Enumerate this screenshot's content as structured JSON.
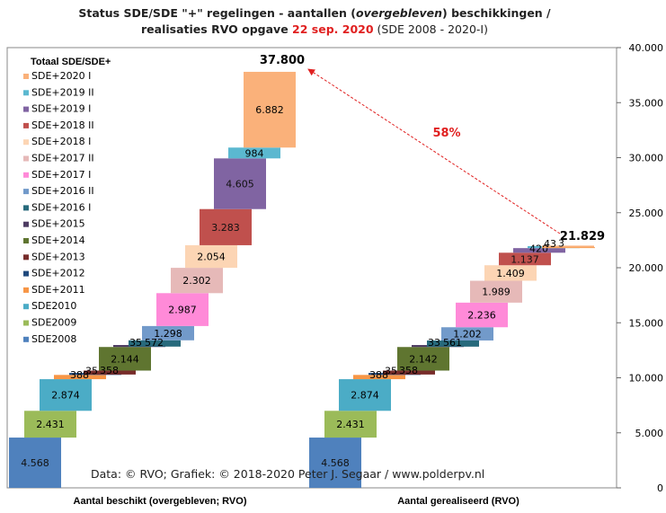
{
  "title": {
    "line1_a": "Status SDE/SDE  \"+\" regelingen  - aantallen (",
    "line1_em": "overgebleven",
    "line1_b": ") beschikkingen  /",
    "line2_a": "realisaties RVO opgave ",
    "line2_date": "22 sep. 2020",
    "line2_b": " (SDE 2008 - 2020-I)"
  },
  "chart_data": {
    "type": "bar",
    "subtype": "stacked-waterfall",
    "legend_title": "Totaal SDE/SDE+",
    "legend_position": "left",
    "categories": [
      "Aantal beschikt (overgebleven; RVO)",
      "Aantal gerealiseerd (RVO)"
    ],
    "ylim": [
      0,
      40000
    ],
    "yticks": [
      "0",
      "5.000",
      "10.000",
      "15.000",
      "20.000",
      "25.000",
      "30.000",
      "35.000",
      "40.000"
    ],
    "ytick_values": [
      0,
      5000,
      10000,
      15000,
      20000,
      25000,
      30000,
      35000,
      40000
    ],
    "y_axis_side": "right",
    "grid": false,
    "series": [
      {
        "name": "SDE2008",
        "color": "#4f81bd",
        "values": [
          4568,
          4568
        ],
        "labels": [
          "4.568",
          "4.568"
        ]
      },
      {
        "name": "SDE2009",
        "color": "#9bbb59",
        "values": [
          2431,
          2431
        ],
        "labels": [
          "2.431",
          "2.431"
        ]
      },
      {
        "name": "SDE2010",
        "color": "#4bacc6",
        "values": [
          2874,
          2874
        ],
        "labels": [
          "2.874",
          "2.874"
        ]
      },
      {
        "name": "SDE+2011",
        "color": "#f79646",
        "values": [
          388,
          388
        ],
        "labels": [
          "388",
          "388"
        ]
      },
      {
        "name": "SDE+2012",
        "color": "#1f497d",
        "values": [
          35,
          35
        ],
        "labels": [
          "35",
          "35"
        ]
      },
      {
        "name": "SDE+2013",
        "color": "#772c2a",
        "values": [
          358,
          358
        ],
        "labels": [
          "358",
          "358"
        ]
      },
      {
        "name": "SDE+2014",
        "color": "#5f7530",
        "values": [
          2144,
          2142
        ],
        "labels": [
          "2.144",
          "2.142"
        ]
      },
      {
        "name": "SDE+2015",
        "color": "#4d3b62",
        "values": [
          35,
          33
        ],
        "labels": [
          "35",
          "33"
        ]
      },
      {
        "name": "SDE+2016 I",
        "color": "#276a7c",
        "values": [
          572,
          561
        ],
        "labels": [
          "572",
          "561"
        ]
      },
      {
        "name": "SDE+2016 II",
        "color": "#729aca",
        "values": [
          1298,
          1202
        ],
        "labels": [
          "1.298",
          "1.202"
        ]
      },
      {
        "name": "SDE+2017 I",
        "color": "#ff8ad8",
        "values": [
          2987,
          2236
        ],
        "labels": [
          "2.987",
          "2.236"
        ]
      },
      {
        "name": "SDE+2017 II",
        "color": "#e6b9b8",
        "values": [
          2302,
          1989
        ],
        "labels": [
          "2.302",
          "1.989"
        ]
      },
      {
        "name": "SDE+2018 I",
        "color": "#fcd5b4",
        "values": [
          2054,
          1409
        ],
        "labels": [
          "2.054",
          "1.409"
        ]
      },
      {
        "name": "SDE+2018 II",
        "color": "#c0504d",
        "values": [
          3283,
          1137
        ],
        "labels": [
          "3.283",
          "1.137"
        ]
      },
      {
        "name": "SDE+2019 I",
        "color": "#8064a2",
        "values": [
          4605,
          420
        ],
        "labels": [
          "4.605",
          "420"
        ]
      },
      {
        "name": "SDE+2019 II",
        "color": "#5bb8d0",
        "values": [
          984,
          43
        ],
        "labels": [
          "984",
          "43"
        ]
      },
      {
        "name": "SDE+2020 I",
        "color": "#fab17a",
        "values": [
          6882,
          3
        ],
        "labels": [
          "6.882",
          "3"
        ]
      }
    ],
    "totals": [
      37800,
      21829
    ],
    "total_labels": [
      "37.800",
      "21.829"
    ],
    "annotation": {
      "text": "58%",
      "color": "#e02020",
      "from": "Aantal gerealiseerd (RVO)",
      "to": "Aantal beschikt (overgebleven; RVO)"
    },
    "credit": "Data: © RVO;  Grafiek:  © 2018-2020 Peter J. Segaar / www.polderpv.nl"
  }
}
